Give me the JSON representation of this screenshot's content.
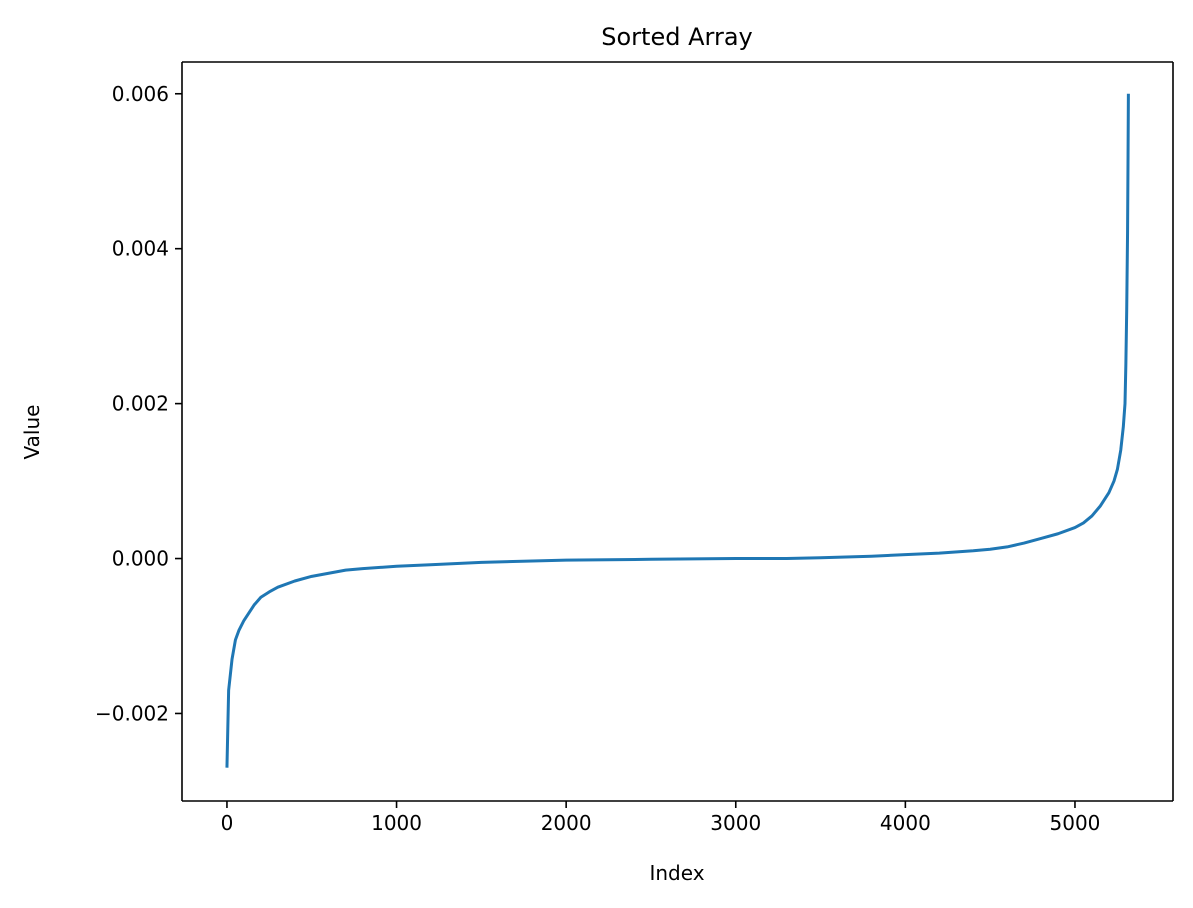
{
  "chart_data": {
    "type": "line",
    "title": "Sorted Array",
    "xlabel": "Index",
    "ylabel": "Value",
    "xlim": [
      -265,
      5578
    ],
    "ylim": [
      -0.00313,
      0.00641
    ],
    "xticks": [
      0,
      1000,
      2000,
      3000,
      4000,
      5000
    ],
    "xtick_labels": [
      "0",
      "1000",
      "2000",
      "3000",
      "4000",
      "5000"
    ],
    "yticks": [
      -0.002,
      0.0,
      0.002,
      0.004,
      0.006
    ],
    "ytick_labels": [
      "−0.002",
      "0.000",
      "0.002",
      "0.004",
      "0.006"
    ],
    "grid": false,
    "series": [
      {
        "color": "#1f77b4",
        "x": [
          0,
          5,
          10,
          20,
          30,
          50,
          70,
          100,
          130,
          160,
          200,
          250,
          300,
          400,
          500,
          600,
          700,
          800,
          1000,
          1200,
          1500,
          2000,
          2500,
          3000,
          3300,
          3500,
          3800,
          4000,
          4200,
          4400,
          4500,
          4600,
          4700,
          4800,
          4900,
          5000,
          5050,
          5100,
          5150,
          5200,
          5230,
          5250,
          5270,
          5285,
          5295,
          5300,
          5305,
          5310,
          5313,
          5315
        ],
        "values": [
          -0.0027,
          -0.0022,
          -0.0017,
          -0.0015,
          -0.0013,
          -0.00105,
          -0.00093,
          -0.0008,
          -0.0007,
          -0.0006,
          -0.0005,
          -0.00043,
          -0.00037,
          -0.00029,
          -0.00023,
          -0.00019,
          -0.00015,
          -0.00013,
          -0.0001,
          -8e-05,
          -5e-05,
          -2e-05,
          -1e-05,
          0.0,
          0.0,
          1e-05,
          3e-05,
          5e-05,
          7e-05,
          0.0001,
          0.00012,
          0.00015,
          0.0002,
          0.00026,
          0.00032,
          0.0004,
          0.00046,
          0.00055,
          0.00068,
          0.00085,
          0.001,
          0.00115,
          0.0014,
          0.0017,
          0.002,
          0.0025,
          0.0032,
          0.0042,
          0.0052,
          0.006
        ]
      }
    ]
  }
}
